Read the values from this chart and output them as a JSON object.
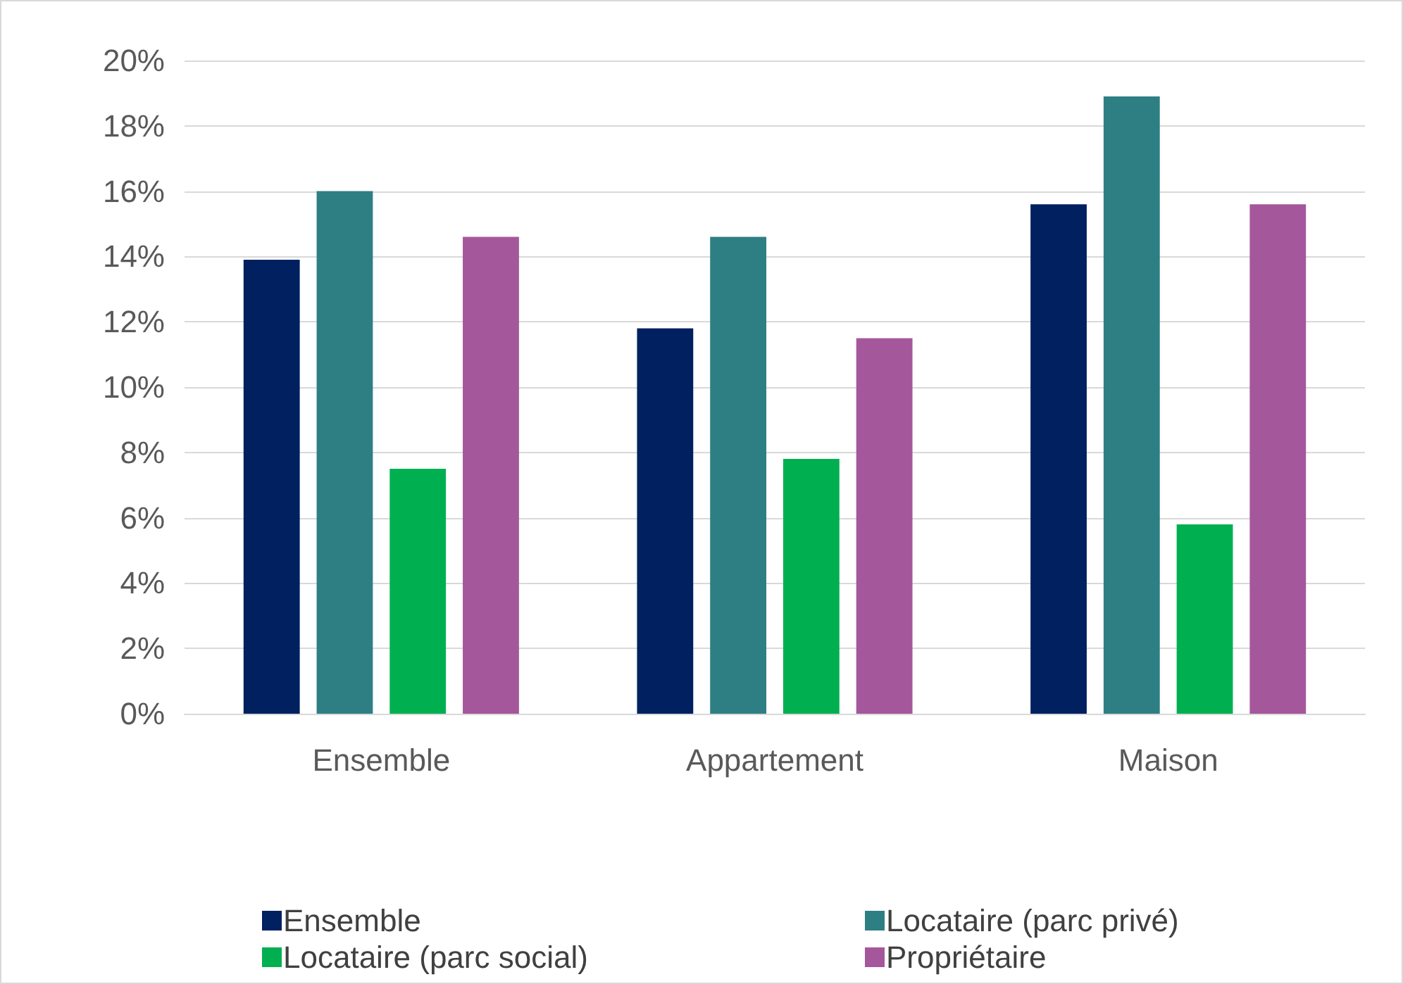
{
  "chart_data": {
    "type": "bar",
    "categories": [
      "Ensemble",
      "Appartement",
      "Maison"
    ],
    "series": [
      {
        "name": "Ensemble",
        "color": "#002060",
        "values": [
          13.9,
          11.8,
          15.6
        ]
      },
      {
        "name": "Locataire (parc privé)",
        "color": "#2e7f84",
        "values": [
          16.0,
          14.6,
          18.9
        ]
      },
      {
        "name": "Locataire (parc social)",
        "color": "#00b050",
        "values": [
          7.5,
          7.8,
          5.8
        ]
      },
      {
        "name": "Propriétaire",
        "color": "#a5579c",
        "values": [
          14.6,
          11.5,
          15.6
        ]
      }
    ],
    "ylim": [
      0,
      20
    ],
    "yticks": [
      {
        "value": 0,
        "label": "0%"
      },
      {
        "value": 2,
        "label": "2%"
      },
      {
        "value": 4,
        "label": "4%"
      },
      {
        "value": 6,
        "label": "6%"
      },
      {
        "value": 8,
        "label": "8%"
      },
      {
        "value": 10,
        "label": "10%"
      },
      {
        "value": 12,
        "label": "12%"
      },
      {
        "value": 14,
        "label": "14%"
      },
      {
        "value": 16,
        "label": "16%"
      },
      {
        "value": 18,
        "label": "18%"
      },
      {
        "value": 20,
        "label": "20%"
      }
    ],
    "grid": "y",
    "legend": "bottom"
  }
}
